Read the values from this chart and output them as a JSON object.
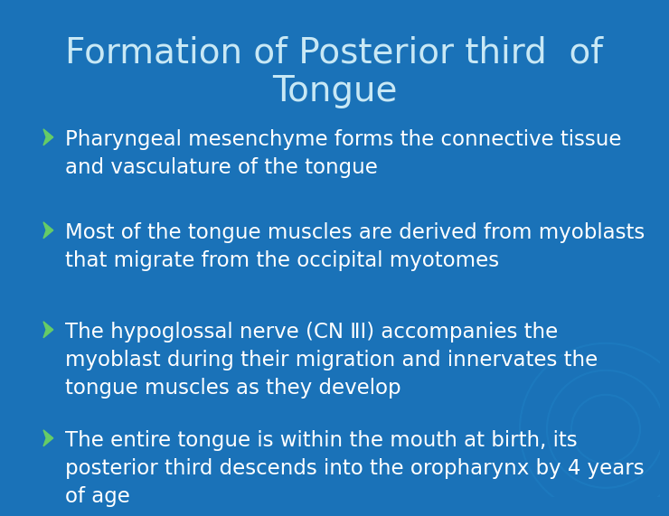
{
  "title_line1": "Formation of Posterior third  of",
  "title_line2": "Tongue",
  "bg_color": "#1a72b8",
  "title_color": "#c8e8f5",
  "bullet_color": "#ffffff",
  "arrow_color": "#66cc66",
  "title_fontsize": 28,
  "bullet_fontsize": 16.5,
  "bullets": [
    "Pharyngeal mesenchyme forms the connective tissue\nand vasculature of the tongue",
    "Most of the tongue muscles are derived from myoblasts\nthat migrate from the occipital myotomes",
    "The hypoglossal nerve (CN ⅡⅠ) accompanies the\nmyoblast during their migration and innervates the\ntongue muscles as they develop",
    "The entire tongue is within the mouth at birth, its\nposterior third descends into the oropharynx by 4 years\nof age"
  ]
}
